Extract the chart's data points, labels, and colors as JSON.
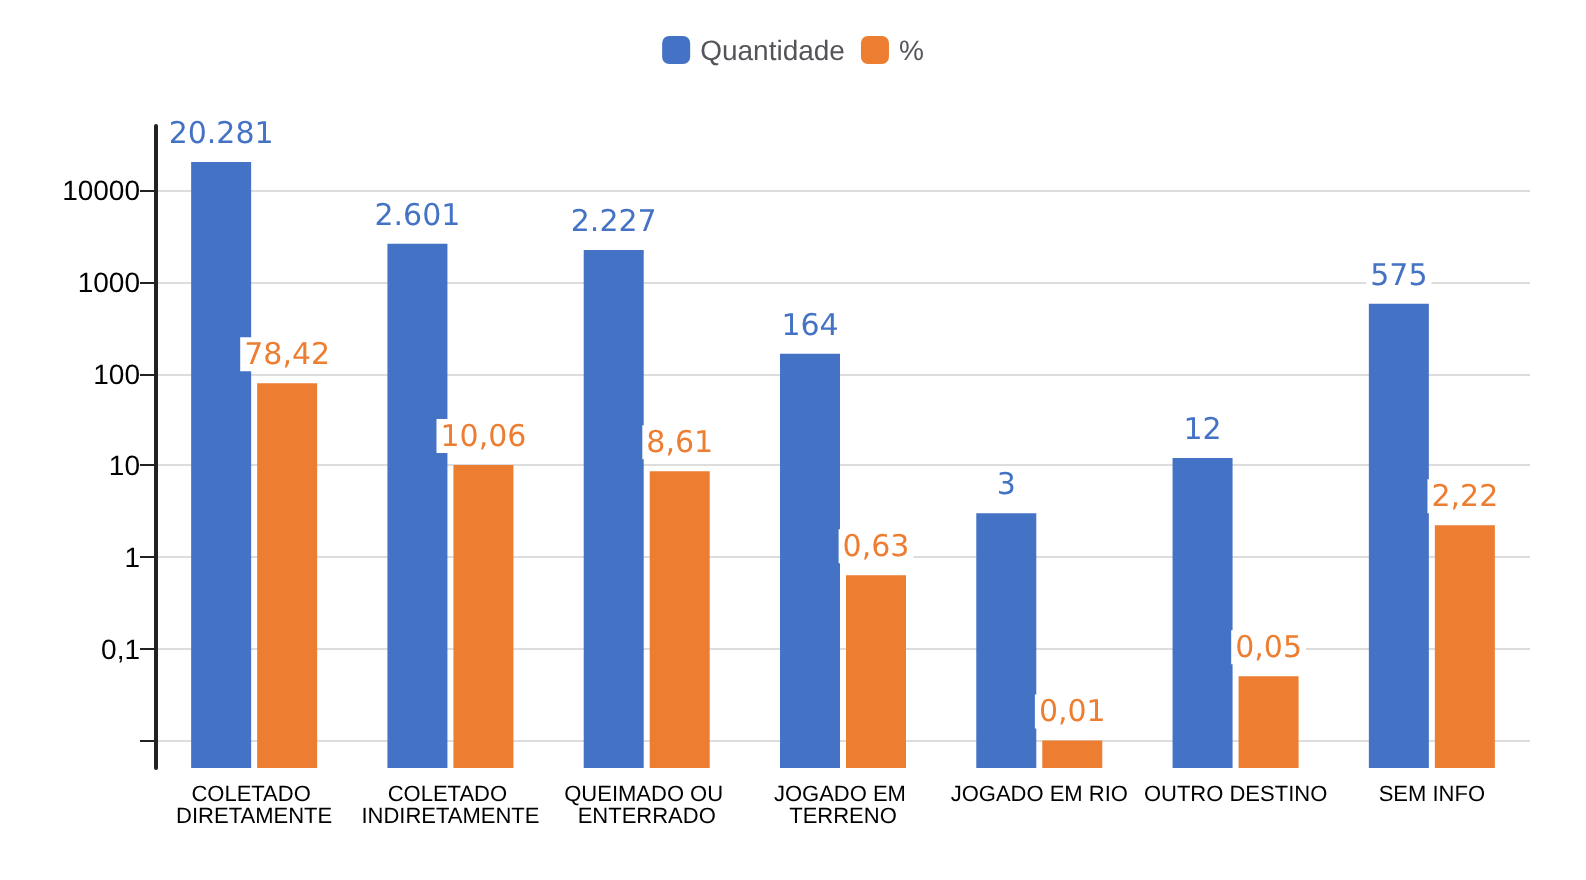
{
  "chart_data": {
    "type": "bar",
    "categories": [
      "COLETADO DIRETAMENTE",
      "COLETADO INDIRETAMENTE",
      "QUEIMADO OU ENTERRADO",
      "JOGADO EM TERRENO",
      "JOGADO EM RIO",
      "OUTRO DESTINO",
      "SEM INFO"
    ],
    "series": [
      {
        "name": "Quantidade",
        "color": "#4472c4",
        "values": [
          20281,
          2601,
          2227,
          164,
          3,
          12,
          575
        ],
        "value_labels": [
          "20.281",
          "2.601",
          "2.227",
          "164",
          "3",
          "12",
          "575"
        ]
      },
      {
        "name": "%",
        "color": "#ed7d31",
        "values": [
          78.42,
          10.06,
          8.61,
          0.63,
          0.01,
          0.05,
          2.22
        ],
        "value_labels": [
          "78,42",
          "10,06",
          "8,61",
          "0,63",
          "0,01",
          "0,05",
          "2,22"
        ]
      }
    ],
    "log": "y",
    "ylim": [
      0.005,
      50000
    ],
    "yticks": [
      {
        "value": 0.01,
        "label": null
      },
      {
        "value": 0.1,
        "label": "0,1"
      },
      1,
      10,
      100,
      1000,
      10000
    ],
    "grid": "y",
    "legend": "top"
  }
}
